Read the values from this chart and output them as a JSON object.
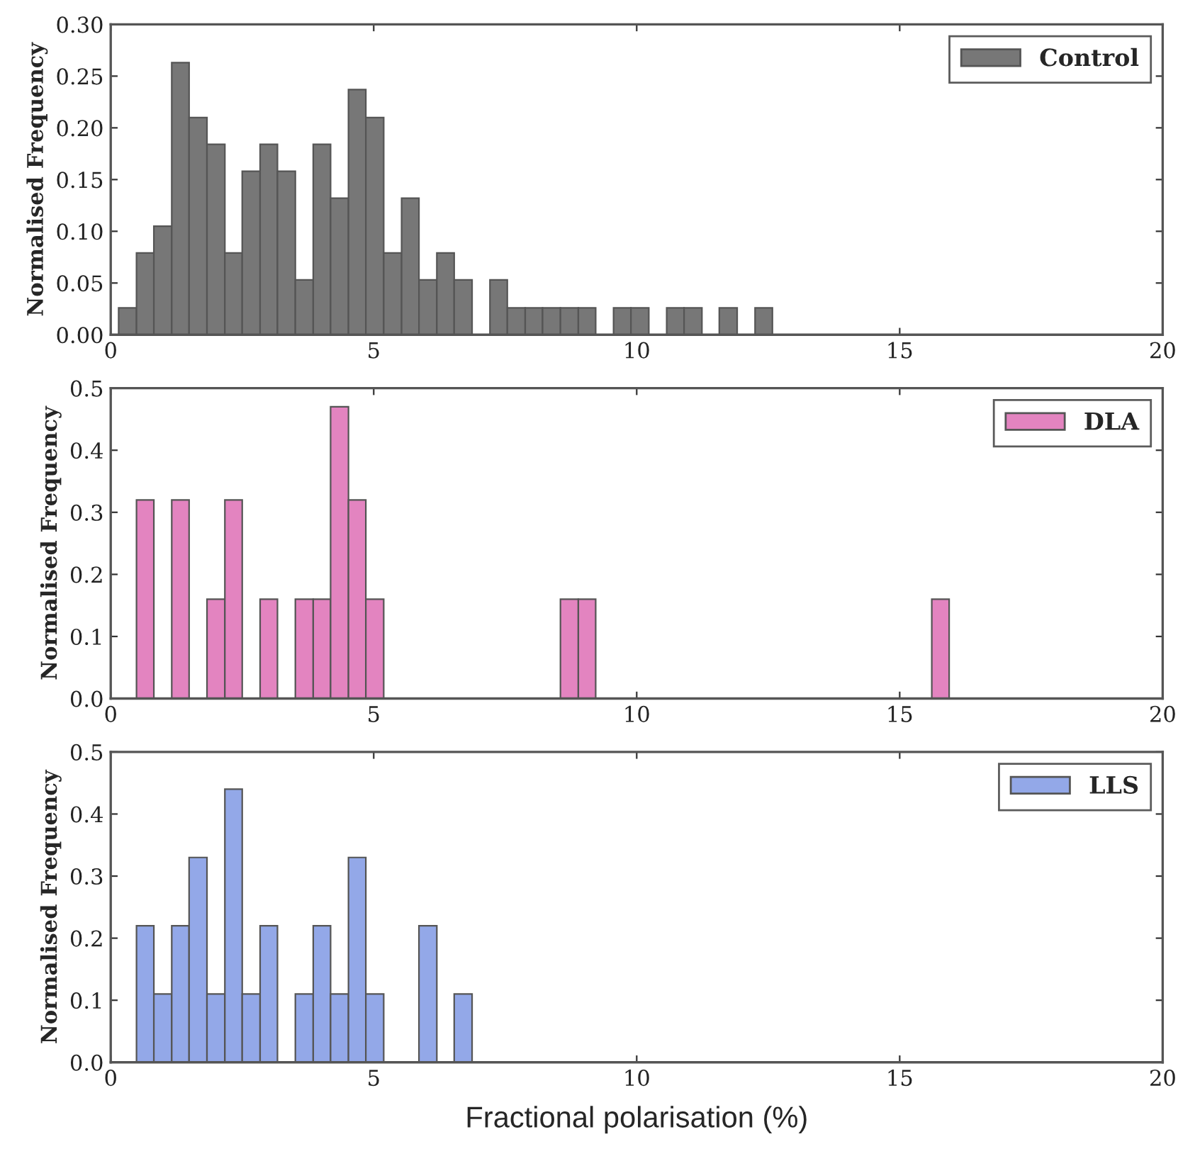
{
  "chart_data": [
    {
      "type": "histogram",
      "ylabel": "Normalised Frequency",
      "legend": "top right",
      "bins": [
        0.15,
        0.49,
        0.82,
        1.16,
        1.49,
        1.83,
        2.17,
        2.5,
        2.84,
        3.17,
        3.51,
        3.85,
        4.18,
        4.52,
        4.85,
        5.19,
        5.53,
        5.86,
        6.2,
        6.53,
        6.87,
        7.21,
        7.54,
        7.88,
        8.21,
        8.55,
        8.89,
        9.22,
        9.56,
        9.89,
        10.23,
        10.57,
        10.9,
        11.24,
        11.57,
        11.91,
        12.25,
        12.58
      ],
      "series": [
        {
          "name": "Control",
          "color": "#777777",
          "values": [
            0.026,
            0.079,
            0.105,
            0.263,
            0.21,
            0.184,
            0.079,
            0.158,
            0.184,
            0.158,
            0.053,
            0.184,
            0.132,
            0.237,
            0.21,
            0.079,
            0.132,
            0.053,
            0.079,
            0.053,
            0,
            0.053,
            0.026,
            0.026,
            0.026,
            0.026,
            0.026,
            0,
            0.026,
            0.026,
            0,
            0.026,
            0.026,
            0,
            0.026,
            0,
            0.026
          ]
        }
      ],
      "xlim": [
        0,
        20
      ],
      "xticks": [
        0,
        5,
        10,
        15,
        20
      ],
      "ylim": [
        0,
        0.3
      ],
      "yticks": [
        {
          "value": 0,
          "label": "0.00"
        },
        {
          "value": 0.05,
          "label": "0.05"
        },
        {
          "value": 0.1,
          "label": "0.10"
        },
        {
          "value": 0.15,
          "label": "0.15"
        },
        {
          "value": 0.2,
          "label": "0.20"
        },
        {
          "value": 0.25,
          "label": "0.25"
        },
        {
          "value": 0.3,
          "label": "0.30"
        }
      ]
    },
    {
      "type": "histogram",
      "ylabel": "Normalised Frequency",
      "legend": "top right",
      "bins": [
        0.49,
        0.82,
        1.16,
        1.49,
        1.83,
        2.17,
        2.5,
        2.84,
        3.17,
        3.51,
        3.85,
        4.18,
        4.52,
        4.85,
        5.19,
        8.55,
        8.89,
        9.22,
        15.61,
        15.94
      ],
      "series": [
        {
          "name": "DLA",
          "color": "#e384c0",
          "values": [
            0.32,
            0,
            0.32,
            0,
            0.16,
            0.32,
            0,
            0.16,
            0,
            0.16,
            0.16,
            0.47,
            0.32,
            0.16,
            0,
            0.16,
            0.16,
            0,
            0.16
          ]
        }
      ],
      "xlim": [
        0,
        20
      ],
      "xticks": [
        0,
        5,
        10,
        15,
        20
      ],
      "ylim": [
        0,
        0.5
      ],
      "yticks": [
        {
          "value": 0,
          "label": "0.0"
        },
        {
          "value": 0.1,
          "label": "0.1"
        },
        {
          "value": 0.2,
          "label": "0.2"
        },
        {
          "value": 0.3,
          "label": "0.3"
        },
        {
          "value": 0.4,
          "label": "0.4"
        },
        {
          "value": 0.5,
          "label": "0.5"
        }
      ]
    },
    {
      "type": "histogram",
      "ylabel": "Normalised Frequency",
      "xlabel": "Fractional polarisation (%)",
      "legend": "top right",
      "bins": [
        0.49,
        0.82,
        1.16,
        1.49,
        1.83,
        2.17,
        2.5,
        2.84,
        3.17,
        3.51,
        3.85,
        4.18,
        4.52,
        4.85,
        5.19,
        5.86,
        6.2,
        6.53,
        6.87
      ],
      "series": [
        {
          "name": "LLS",
          "color": "#93a8e8",
          "values": [
            0.22,
            0.11,
            0.22,
            0.33,
            0.11,
            0.44,
            0.11,
            0.22,
            0,
            0.11,
            0.22,
            0.11,
            0.33,
            0.11,
            0,
            0.22,
            0,
            0.11
          ]
        }
      ],
      "xlim": [
        0,
        20
      ],
      "xticks": [
        0,
        5,
        10,
        15,
        20
      ],
      "ylim": [
        0,
        0.5
      ],
      "yticks": [
        {
          "value": 0,
          "label": "0.0"
        },
        {
          "value": 0.1,
          "label": "0.1"
        },
        {
          "value": 0.2,
          "label": "0.2"
        },
        {
          "value": 0.3,
          "label": "0.3"
        },
        {
          "value": 0.4,
          "label": "0.4"
        },
        {
          "value": 0.5,
          "label": "0.5"
        }
      ]
    }
  ]
}
